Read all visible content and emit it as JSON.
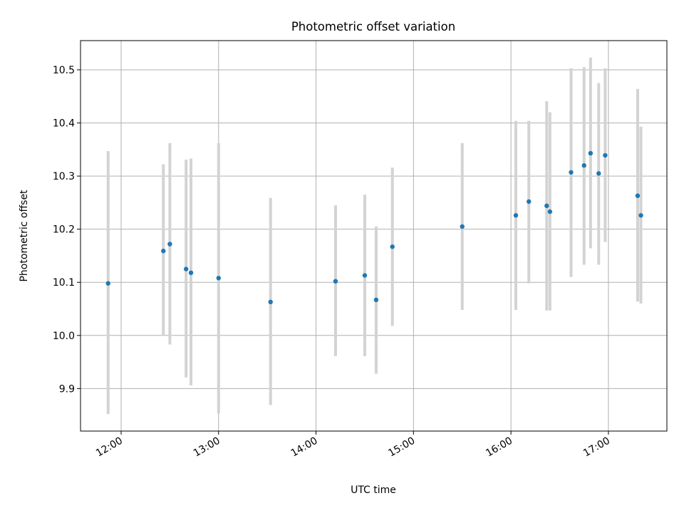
{
  "chart_data": {
    "type": "scatter",
    "title": "Photometric offset variation",
    "xlabel": "UTC time",
    "ylabel": "Photometric offset",
    "x_axis_kind": "time",
    "xlim": [
      "11:35",
      "17:36"
    ],
    "ylim": [
      9.82,
      10.555
    ],
    "x_ticks": [
      "12:00",
      "13:00",
      "14:00",
      "15:00",
      "16:00",
      "17:00"
    ],
    "y_ticks": [
      9.9,
      10.0,
      10.1,
      10.2,
      10.3,
      10.4,
      10.5
    ],
    "y_tick_labels": [
      "9.9",
      "10.0",
      "10.1",
      "10.2",
      "10.3",
      "10.4",
      "10.5"
    ],
    "grid": true,
    "colors": {
      "point": "#1f77b4",
      "errorbar": "#d3d3d3",
      "grid": "#b0b0b0"
    },
    "points": [
      {
        "x": "11:52",
        "y": 10.098,
        "ylow": 9.852,
        "yhigh": 10.347
      },
      {
        "x": "12:26",
        "y": 10.159,
        "ylow": 10.0,
        "yhigh": 10.322
      },
      {
        "x": "12:30",
        "y": 10.172,
        "ylow": 9.983,
        "yhigh": 10.362
      },
      {
        "x": "12:40",
        "y": 10.125,
        "ylow": 9.921,
        "yhigh": 10.331
      },
      {
        "x": "12:43",
        "y": 10.118,
        "ylow": 9.906,
        "yhigh": 10.333
      },
      {
        "x": "13:00",
        "y": 10.108,
        "ylow": 9.853,
        "yhigh": 10.362
      },
      {
        "x": "13:32",
        "y": 10.063,
        "ylow": 9.869,
        "yhigh": 10.259
      },
      {
        "x": "14:12",
        "y": 10.102,
        "ylow": 9.961,
        "yhigh": 10.245
      },
      {
        "x": "14:30",
        "y": 10.113,
        "ylow": 9.961,
        "yhigh": 10.265
      },
      {
        "x": "14:37",
        "y": 10.067,
        "ylow": 9.928,
        "yhigh": 10.205
      },
      {
        "x": "14:47",
        "y": 10.167,
        "ylow": 10.018,
        "yhigh": 10.316
      },
      {
        "x": "15:30",
        "y": 10.205,
        "ylow": 10.048,
        "yhigh": 10.362
      },
      {
        "x": "16:03",
        "y": 10.226,
        "ylow": 10.048,
        "yhigh": 10.404
      },
      {
        "x": "16:11",
        "y": 10.252,
        "ylow": 10.098,
        "yhigh": 10.404
      },
      {
        "x": "16:22",
        "y": 10.244,
        "ylow": 10.047,
        "yhigh": 10.441
      },
      {
        "x": "16:24",
        "y": 10.233,
        "ylow": 10.047,
        "yhigh": 10.42
      },
      {
        "x": "16:37",
        "y": 10.307,
        "ylow": 10.11,
        "yhigh": 10.503
      },
      {
        "x": "16:45",
        "y": 10.32,
        "ylow": 10.133,
        "yhigh": 10.505
      },
      {
        "x": "16:49",
        "y": 10.343,
        "ylow": 10.164,
        "yhigh": 10.523
      },
      {
        "x": "16:54",
        "y": 10.305,
        "ylow": 10.133,
        "yhigh": 10.475
      },
      {
        "x": "16:58",
        "y": 10.339,
        "ylow": 10.176,
        "yhigh": 10.503
      },
      {
        "x": "17:18",
        "y": 10.263,
        "ylow": 10.064,
        "yhigh": 10.464
      },
      {
        "x": "17:20",
        "y": 10.226,
        "ylow": 10.06,
        "yhigh": 10.393
      }
    ]
  }
}
